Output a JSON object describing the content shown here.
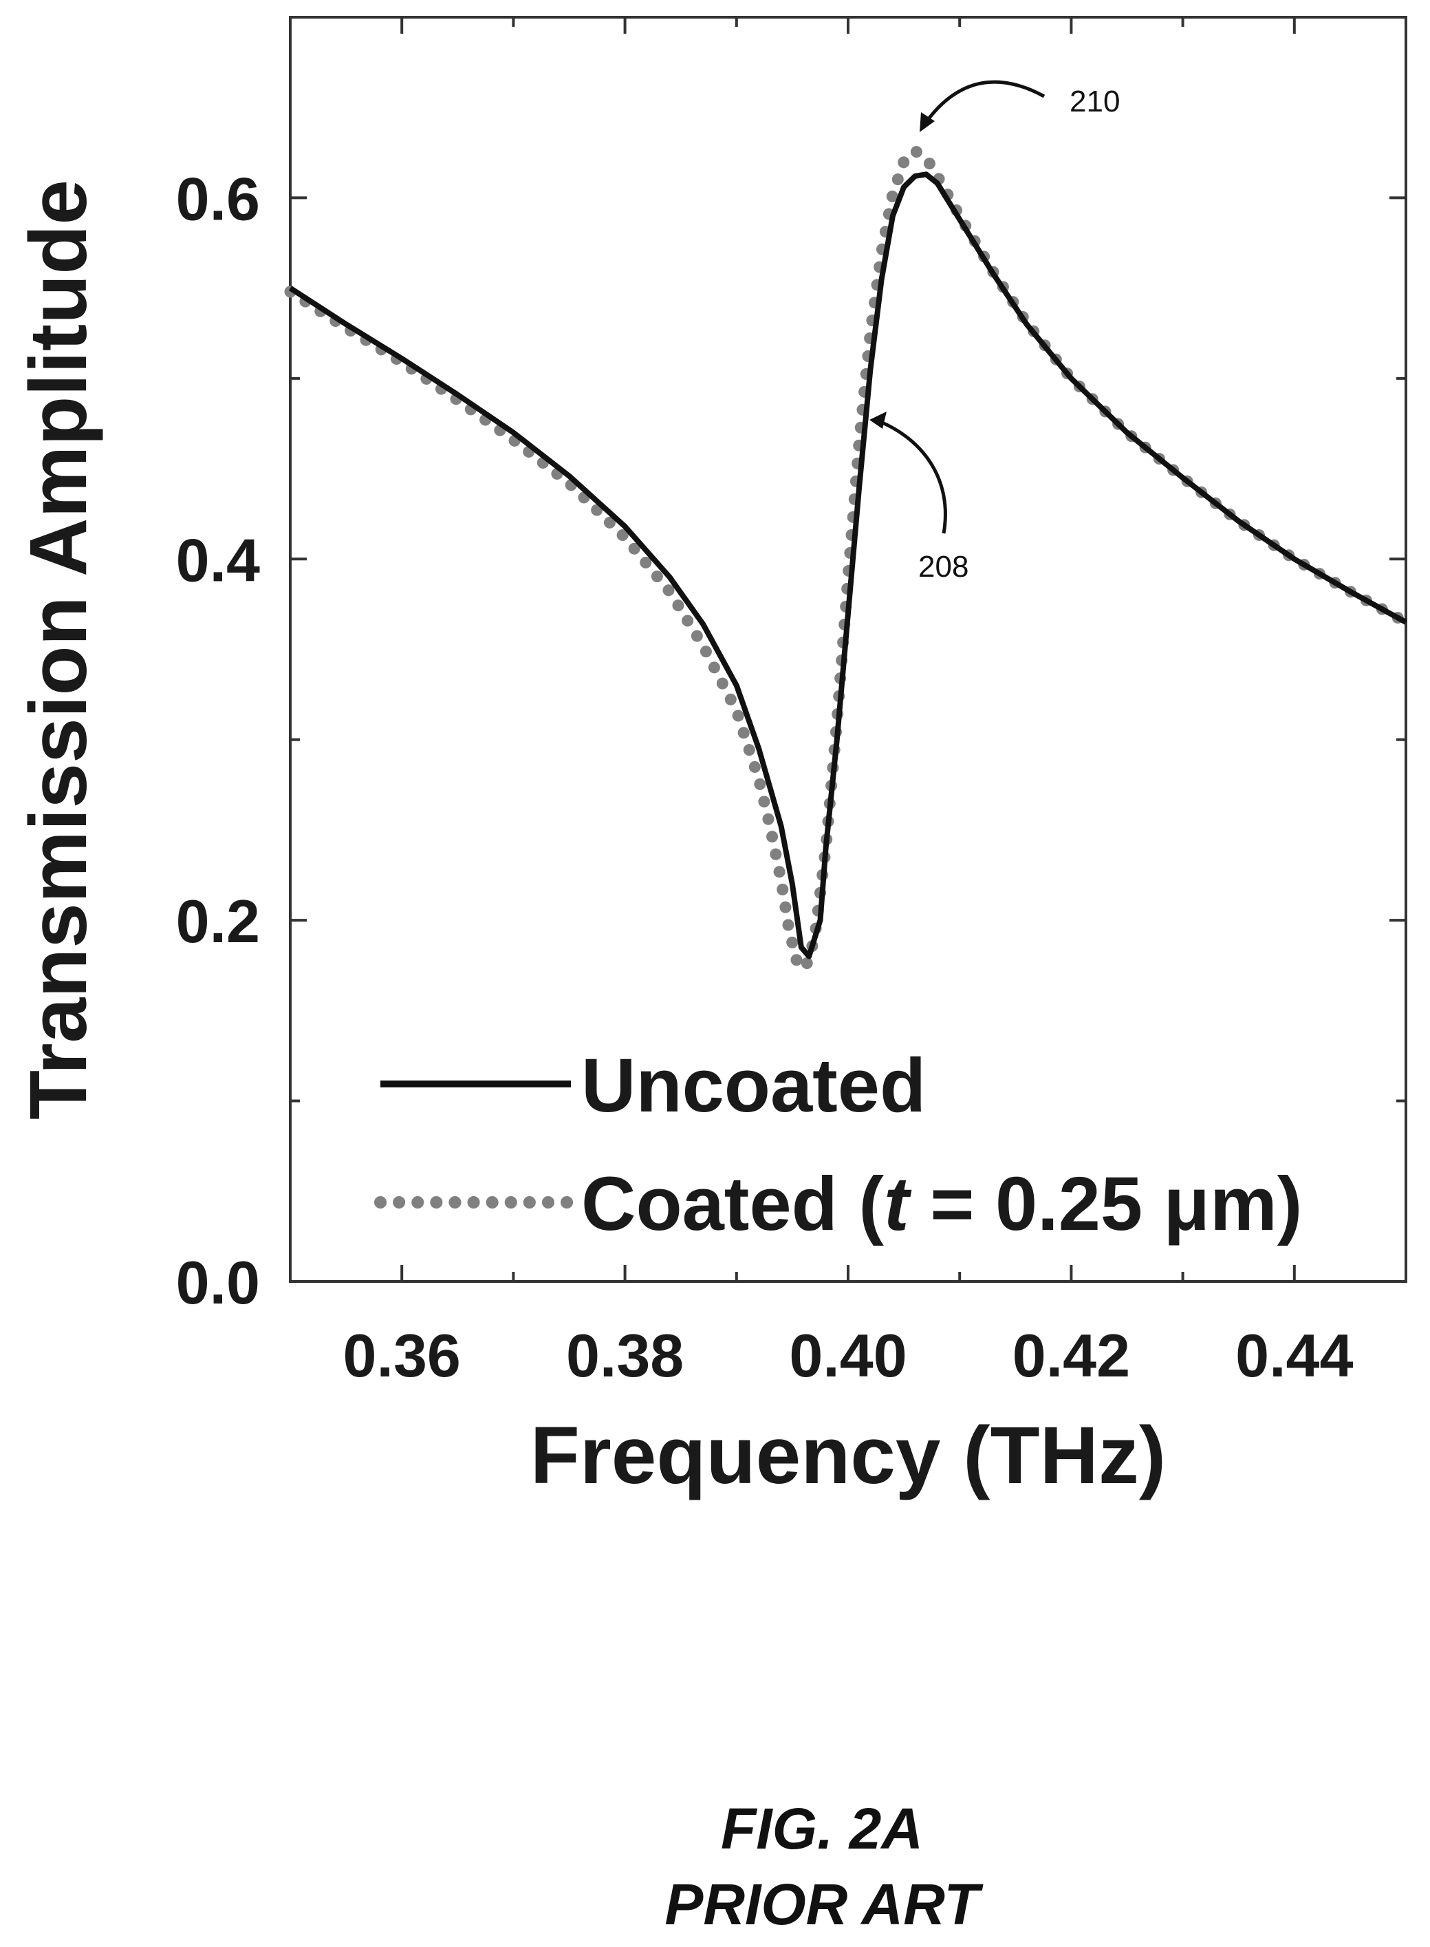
{
  "chart_data": {
    "type": "line",
    "xlabel": "Frequency (THz)",
    "ylabel": "Transmission Amplitude",
    "xlim": [
      0.35,
      0.45
    ],
    "ylim": [
      0.0,
      0.7
    ],
    "x_ticks": [
      "0.36",
      "0.38",
      "0.40",
      "0.42",
      "0.44"
    ],
    "x_tick_values": [
      0.36,
      0.38,
      0.4,
      0.42,
      0.44
    ],
    "y_ticks": [
      "0.0",
      "0.2",
      "0.4",
      "0.6"
    ],
    "y_tick_values": [
      0.0,
      0.2,
      0.4,
      0.6
    ],
    "minor_x_tick_values": [
      0.35,
      0.37,
      0.39,
      0.41,
      0.43,
      0.45
    ],
    "minor_y_tick_values": [
      0.1,
      0.3,
      0.5
    ],
    "grid": false,
    "legend_position": "bottom-right",
    "series": [
      {
        "name": "Uncoated",
        "style": "solid",
        "color": "#111111",
        "points": [
          [
            0.35,
            0.55
          ],
          [
            0.355,
            0.53
          ],
          [
            0.36,
            0.511
          ],
          [
            0.365,
            0.491
          ],
          [
            0.37,
            0.47
          ],
          [
            0.375,
            0.446
          ],
          [
            0.38,
            0.418
          ],
          [
            0.384,
            0.39
          ],
          [
            0.387,
            0.364
          ],
          [
            0.39,
            0.33
          ],
          [
            0.392,
            0.295
          ],
          [
            0.394,
            0.252
          ],
          [
            0.395,
            0.22
          ],
          [
            0.3958,
            0.185
          ],
          [
            0.3965,
            0.18
          ],
          [
            0.3975,
            0.2
          ],
          [
            0.398,
            0.24
          ],
          [
            0.399,
            0.3
          ],
          [
            0.4,
            0.37
          ],
          [
            0.401,
            0.44
          ],
          [
            0.402,
            0.505
          ],
          [
            0.403,
            0.555
          ],
          [
            0.404,
            0.59
          ],
          [
            0.405,
            0.606
          ],
          [
            0.406,
            0.612
          ],
          [
            0.407,
            0.613
          ],
          [
            0.408,
            0.608
          ],
          [
            0.41,
            0.588
          ],
          [
            0.413,
            0.558
          ],
          [
            0.416,
            0.53
          ],
          [
            0.42,
            0.5
          ],
          [
            0.425,
            0.47
          ],
          [
            0.43,
            0.445
          ],
          [
            0.435,
            0.421
          ],
          [
            0.44,
            0.4
          ],
          [
            0.445,
            0.382
          ],
          [
            0.45,
            0.365
          ]
        ]
      },
      {
        "name": "Coated (t = 0.25 μm)",
        "style": "dotted",
        "color": "#808080",
        "points": [
          [
            0.35,
            0.548
          ],
          [
            0.355,
            0.528
          ],
          [
            0.36,
            0.509
          ],
          [
            0.365,
            0.488
          ],
          [
            0.37,
            0.466
          ],
          [
            0.375,
            0.442
          ],
          [
            0.38,
            0.412
          ],
          [
            0.384,
            0.382
          ],
          [
            0.387,
            0.352
          ],
          [
            0.39,
            0.316
          ],
          [
            0.392,
            0.278
          ],
          [
            0.393,
            0.252
          ],
          [
            0.394,
            0.222
          ],
          [
            0.3947,
            0.195
          ],
          [
            0.3955,
            0.175
          ],
          [
            0.3962,
            0.174
          ],
          [
            0.397,
            0.19
          ],
          [
            0.398,
            0.24
          ],
          [
            0.399,
            0.31
          ],
          [
            0.4,
            0.39
          ],
          [
            0.401,
            0.465
          ],
          [
            0.402,
            0.525
          ],
          [
            0.403,
            0.57
          ],
          [
            0.404,
            0.602
          ],
          [
            0.405,
            0.62
          ],
          [
            0.406,
            0.626
          ],
          [
            0.407,
            0.622
          ],
          [
            0.408,
            0.612
          ],
          [
            0.41,
            0.59
          ],
          [
            0.413,
            0.559
          ],
          [
            0.416,
            0.531
          ],
          [
            0.42,
            0.5
          ],
          [
            0.425,
            0.47
          ],
          [
            0.43,
            0.445
          ],
          [
            0.435,
            0.421
          ],
          [
            0.44,
            0.4
          ],
          [
            0.445,
            0.382
          ],
          [
            0.45,
            0.365
          ]
        ]
      }
    ],
    "annotations": [
      {
        "label": "210",
        "points_to": [
          0.406,
          0.629
        ]
      },
      {
        "label": "208",
        "points_to": [
          0.4015,
          0.47
        ]
      }
    ]
  },
  "legend": {
    "uncoated_label": "Uncoated",
    "coated_prefix": "Coated (",
    "coated_italic": "t",
    "coated_suffix": " = 0.25 μm)"
  },
  "caption": {
    "figure": "FIG. 2A",
    "note": "PRIOR ART"
  }
}
